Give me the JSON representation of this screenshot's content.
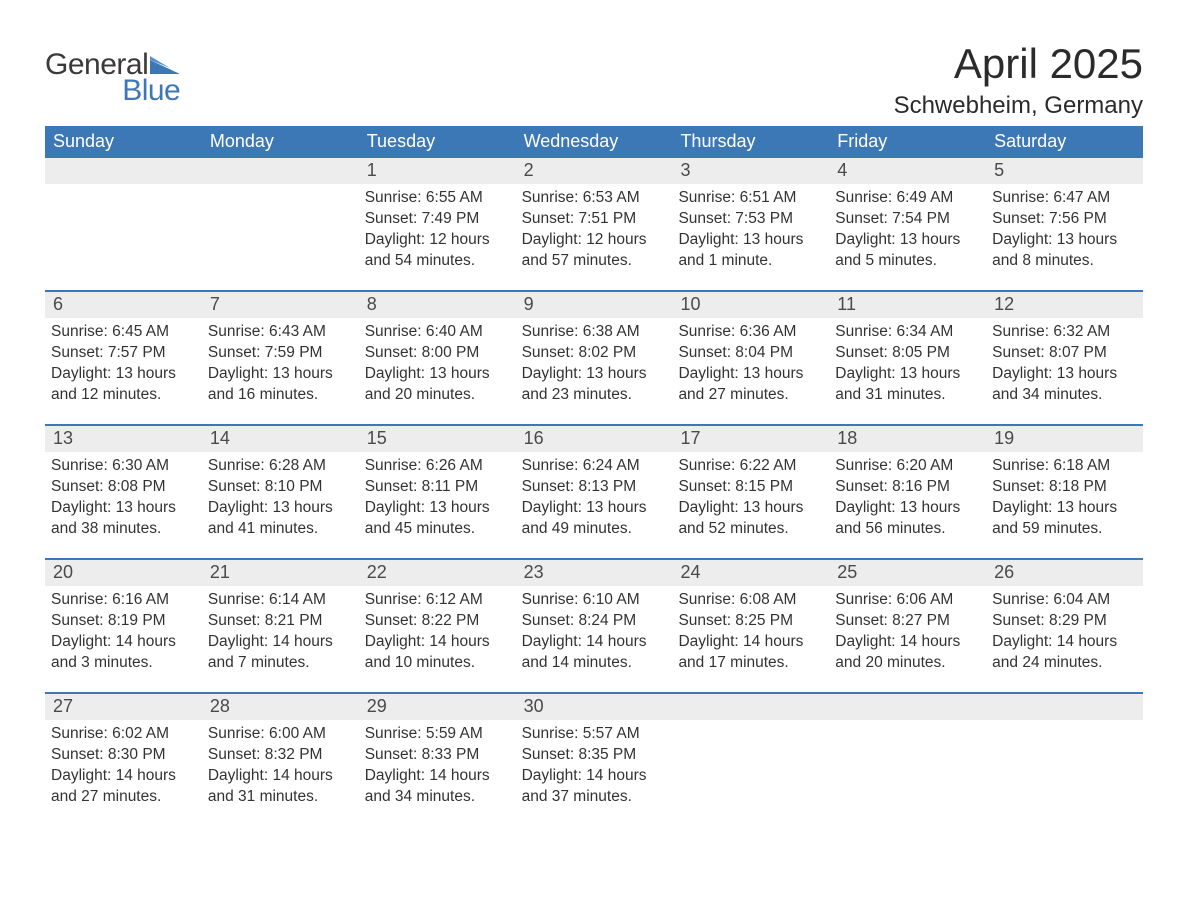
{
  "logo": {
    "text1": "General",
    "text2": "Blue",
    "flag_color": "#3d78b6",
    "text1_color": "#3a3a3a"
  },
  "title": "April 2025",
  "subtitle": "Schwebheim, Germany",
  "colors": {
    "header_bg": "#3d78b6",
    "header_text": "#ffffff",
    "daynum_bg": "#ededed",
    "daynum_text": "#4a4a4a",
    "body_text": "#333333",
    "row_divider": "#3d78b6",
    "page_bg": "#ffffff"
  },
  "fonts": {
    "title_size_pt": 32,
    "subtitle_size_pt": 18,
    "weekday_size_pt": 14,
    "daynum_size_pt": 14,
    "body_size_pt": 12
  },
  "weekdays": [
    "Sunday",
    "Monday",
    "Tuesday",
    "Wednesday",
    "Thursday",
    "Friday",
    "Saturday"
  ],
  "weeks": [
    [
      {
        "num": "",
        "sunrise": "",
        "sunset": "",
        "daylight1": "",
        "daylight2": ""
      },
      {
        "num": "",
        "sunrise": "",
        "sunset": "",
        "daylight1": "",
        "daylight2": ""
      },
      {
        "num": "1",
        "sunrise": "Sunrise: 6:55 AM",
        "sunset": "Sunset: 7:49 PM",
        "daylight1": "Daylight: 12 hours",
        "daylight2": "and 54 minutes."
      },
      {
        "num": "2",
        "sunrise": "Sunrise: 6:53 AM",
        "sunset": "Sunset: 7:51 PM",
        "daylight1": "Daylight: 12 hours",
        "daylight2": "and 57 minutes."
      },
      {
        "num": "3",
        "sunrise": "Sunrise: 6:51 AM",
        "sunset": "Sunset: 7:53 PM",
        "daylight1": "Daylight: 13 hours",
        "daylight2": "and 1 minute."
      },
      {
        "num": "4",
        "sunrise": "Sunrise: 6:49 AM",
        "sunset": "Sunset: 7:54 PM",
        "daylight1": "Daylight: 13 hours",
        "daylight2": "and 5 minutes."
      },
      {
        "num": "5",
        "sunrise": "Sunrise: 6:47 AM",
        "sunset": "Sunset: 7:56 PM",
        "daylight1": "Daylight: 13 hours",
        "daylight2": "and 8 minutes."
      }
    ],
    [
      {
        "num": "6",
        "sunrise": "Sunrise: 6:45 AM",
        "sunset": "Sunset: 7:57 PM",
        "daylight1": "Daylight: 13 hours",
        "daylight2": "and 12 minutes."
      },
      {
        "num": "7",
        "sunrise": "Sunrise: 6:43 AM",
        "sunset": "Sunset: 7:59 PM",
        "daylight1": "Daylight: 13 hours",
        "daylight2": "and 16 minutes."
      },
      {
        "num": "8",
        "sunrise": "Sunrise: 6:40 AM",
        "sunset": "Sunset: 8:00 PM",
        "daylight1": "Daylight: 13 hours",
        "daylight2": "and 20 minutes."
      },
      {
        "num": "9",
        "sunrise": "Sunrise: 6:38 AM",
        "sunset": "Sunset: 8:02 PM",
        "daylight1": "Daylight: 13 hours",
        "daylight2": "and 23 minutes."
      },
      {
        "num": "10",
        "sunrise": "Sunrise: 6:36 AM",
        "sunset": "Sunset: 8:04 PM",
        "daylight1": "Daylight: 13 hours",
        "daylight2": "and 27 minutes."
      },
      {
        "num": "11",
        "sunrise": "Sunrise: 6:34 AM",
        "sunset": "Sunset: 8:05 PM",
        "daylight1": "Daylight: 13 hours",
        "daylight2": "and 31 minutes."
      },
      {
        "num": "12",
        "sunrise": "Sunrise: 6:32 AM",
        "sunset": "Sunset: 8:07 PM",
        "daylight1": "Daylight: 13 hours",
        "daylight2": "and 34 minutes."
      }
    ],
    [
      {
        "num": "13",
        "sunrise": "Sunrise: 6:30 AM",
        "sunset": "Sunset: 8:08 PM",
        "daylight1": "Daylight: 13 hours",
        "daylight2": "and 38 minutes."
      },
      {
        "num": "14",
        "sunrise": "Sunrise: 6:28 AM",
        "sunset": "Sunset: 8:10 PM",
        "daylight1": "Daylight: 13 hours",
        "daylight2": "and 41 minutes."
      },
      {
        "num": "15",
        "sunrise": "Sunrise: 6:26 AM",
        "sunset": "Sunset: 8:11 PM",
        "daylight1": "Daylight: 13 hours",
        "daylight2": "and 45 minutes."
      },
      {
        "num": "16",
        "sunrise": "Sunrise: 6:24 AM",
        "sunset": "Sunset: 8:13 PM",
        "daylight1": "Daylight: 13 hours",
        "daylight2": "and 49 minutes."
      },
      {
        "num": "17",
        "sunrise": "Sunrise: 6:22 AM",
        "sunset": "Sunset: 8:15 PM",
        "daylight1": "Daylight: 13 hours",
        "daylight2": "and 52 minutes."
      },
      {
        "num": "18",
        "sunrise": "Sunrise: 6:20 AM",
        "sunset": "Sunset: 8:16 PM",
        "daylight1": "Daylight: 13 hours",
        "daylight2": "and 56 minutes."
      },
      {
        "num": "19",
        "sunrise": "Sunrise: 6:18 AM",
        "sunset": "Sunset: 8:18 PM",
        "daylight1": "Daylight: 13 hours",
        "daylight2": "and 59 minutes."
      }
    ],
    [
      {
        "num": "20",
        "sunrise": "Sunrise: 6:16 AM",
        "sunset": "Sunset: 8:19 PM",
        "daylight1": "Daylight: 14 hours",
        "daylight2": "and 3 minutes."
      },
      {
        "num": "21",
        "sunrise": "Sunrise: 6:14 AM",
        "sunset": "Sunset: 8:21 PM",
        "daylight1": "Daylight: 14 hours",
        "daylight2": "and 7 minutes."
      },
      {
        "num": "22",
        "sunrise": "Sunrise: 6:12 AM",
        "sunset": "Sunset: 8:22 PM",
        "daylight1": "Daylight: 14 hours",
        "daylight2": "and 10 minutes."
      },
      {
        "num": "23",
        "sunrise": "Sunrise: 6:10 AM",
        "sunset": "Sunset: 8:24 PM",
        "daylight1": "Daylight: 14 hours",
        "daylight2": "and 14 minutes."
      },
      {
        "num": "24",
        "sunrise": "Sunrise: 6:08 AM",
        "sunset": "Sunset: 8:25 PM",
        "daylight1": "Daylight: 14 hours",
        "daylight2": "and 17 minutes."
      },
      {
        "num": "25",
        "sunrise": "Sunrise: 6:06 AM",
        "sunset": "Sunset: 8:27 PM",
        "daylight1": "Daylight: 14 hours",
        "daylight2": "and 20 minutes."
      },
      {
        "num": "26",
        "sunrise": "Sunrise: 6:04 AM",
        "sunset": "Sunset: 8:29 PM",
        "daylight1": "Daylight: 14 hours",
        "daylight2": "and 24 minutes."
      }
    ],
    [
      {
        "num": "27",
        "sunrise": "Sunrise: 6:02 AM",
        "sunset": "Sunset: 8:30 PM",
        "daylight1": "Daylight: 14 hours",
        "daylight2": "and 27 minutes."
      },
      {
        "num": "28",
        "sunrise": "Sunrise: 6:00 AM",
        "sunset": "Sunset: 8:32 PM",
        "daylight1": "Daylight: 14 hours",
        "daylight2": "and 31 minutes."
      },
      {
        "num": "29",
        "sunrise": "Sunrise: 5:59 AM",
        "sunset": "Sunset: 8:33 PM",
        "daylight1": "Daylight: 14 hours",
        "daylight2": "and 34 minutes."
      },
      {
        "num": "30",
        "sunrise": "Sunrise: 5:57 AM",
        "sunset": "Sunset: 8:35 PM",
        "daylight1": "Daylight: 14 hours",
        "daylight2": "and 37 minutes."
      },
      {
        "num": "",
        "sunrise": "",
        "sunset": "",
        "daylight1": "",
        "daylight2": ""
      },
      {
        "num": "",
        "sunrise": "",
        "sunset": "",
        "daylight1": "",
        "daylight2": ""
      },
      {
        "num": "",
        "sunrise": "",
        "sunset": "",
        "daylight1": "",
        "daylight2": ""
      }
    ]
  ]
}
